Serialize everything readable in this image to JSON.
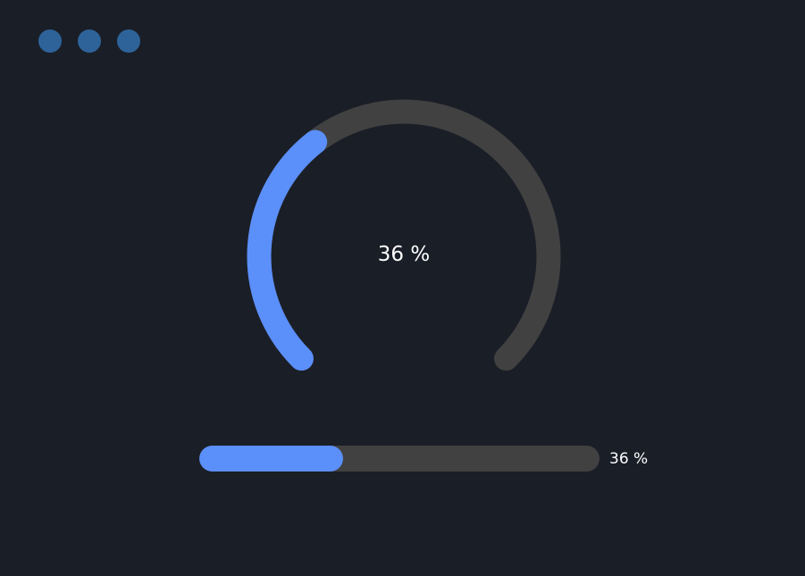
{
  "window_controls": {
    "dots": [
      "dot-1",
      "dot-2",
      "dot-3"
    ],
    "color": "#2e6399"
  },
  "gauge": {
    "value": 36,
    "label": "36 %",
    "fill_color": "#5b8ff9",
    "track_color": "#414141"
  },
  "progress_bar": {
    "value": 36,
    "label": "36 %",
    "fill_color": "#5b8ff9",
    "track_color": "#414141"
  }
}
